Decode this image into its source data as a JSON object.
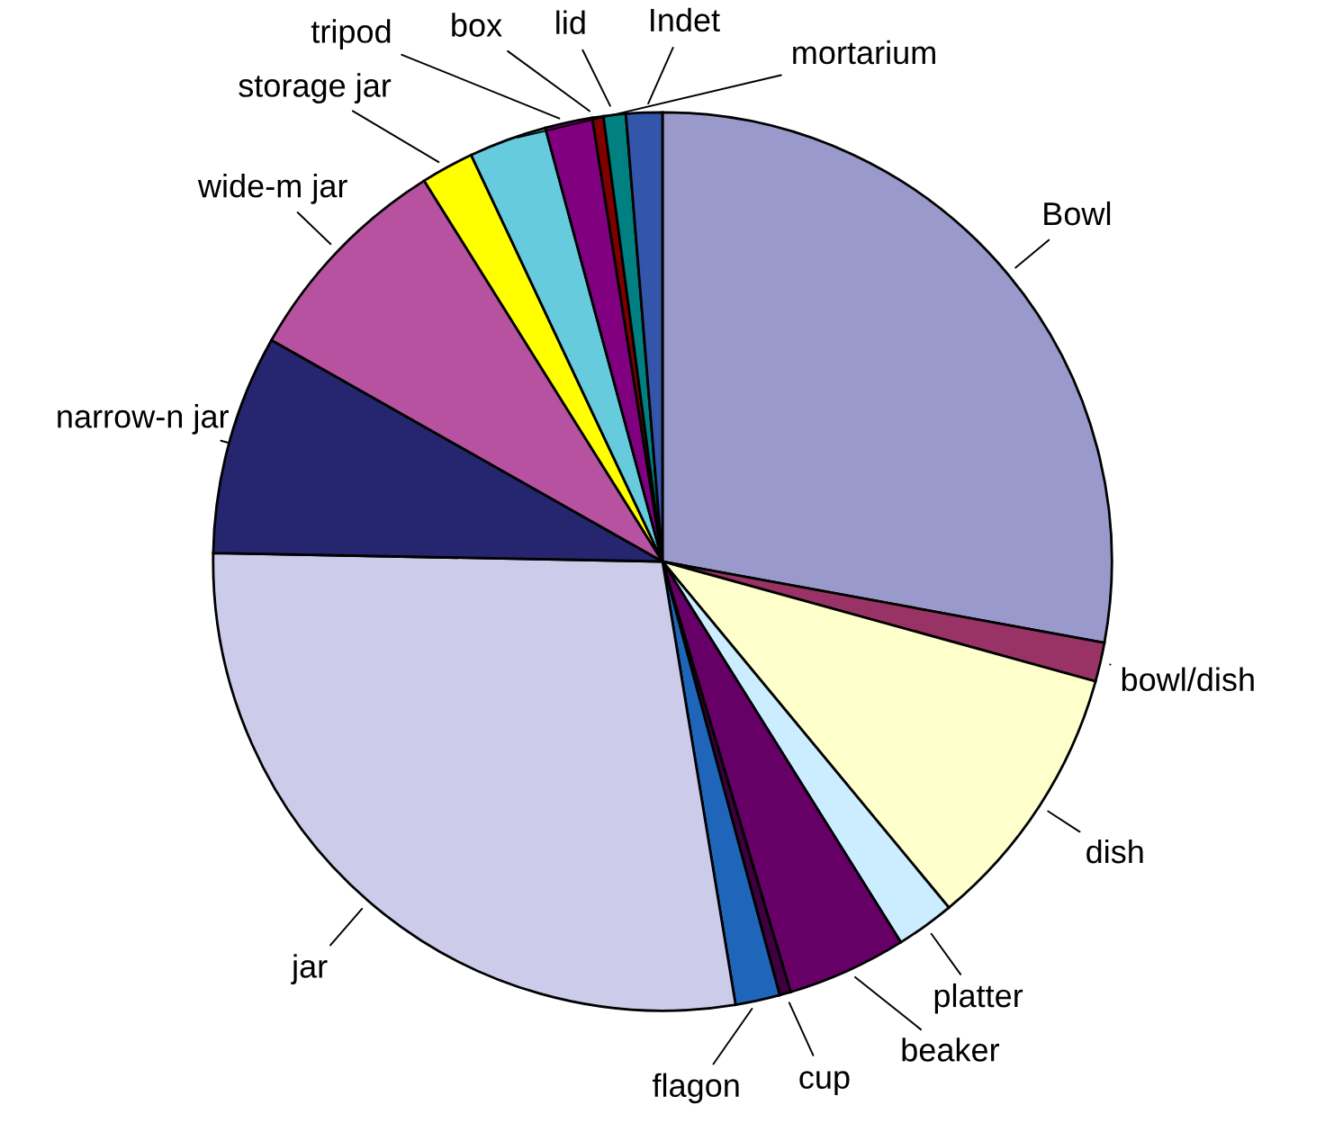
{
  "chart_data": {
    "type": "pie",
    "categories": [
      "Bowl",
      "bowl/dish",
      "dish",
      "platter",
      "beaker",
      "cup",
      "flagon",
      "jar",
      "narrow-n jar",
      "wide-m jar",
      "storage jar",
      "mortarium",
      "tripod",
      "box",
      "lid",
      "Indet"
    ],
    "values": [
      27.9,
      1.4,
      9.7,
      2.1,
      4.3,
      0.4,
      1.6,
      27.9,
      7.9,
      7.9,
      1.9,
      2.8,
      1.7,
      0.4,
      0.8,
      1.3
    ],
    "colors": [
      "#9999cc",
      "#993366",
      "#ffffcc",
      "#ccecff",
      "#660066",
      "#400040",
      "#1f66bb",
      "#ccccea",
      "#262670",
      "#b652a0",
      "#ffff00",
      "#66ccdd",
      "#800080",
      "#800000",
      "#008080",
      "#3355aa"
    ]
  }
}
